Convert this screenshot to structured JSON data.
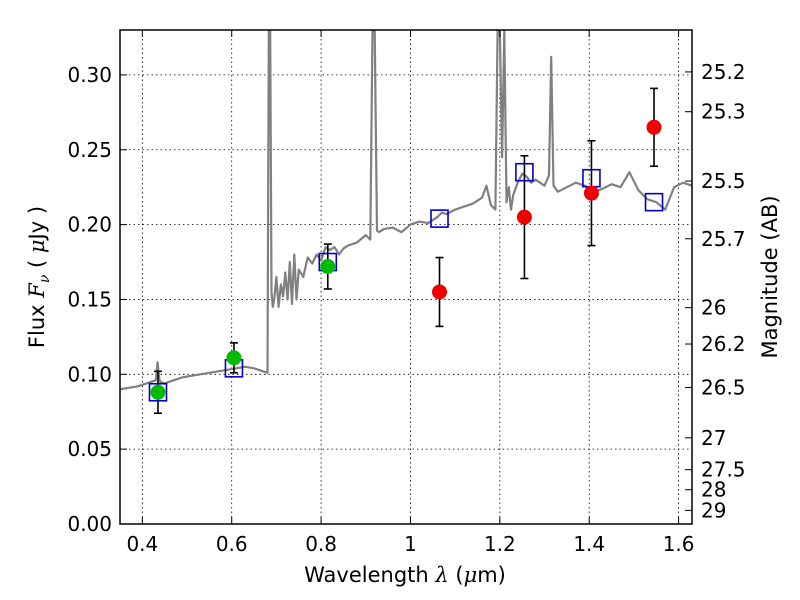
{
  "chart_data": {
    "type": "scatter",
    "xlabel": {
      "text_before": "Wavelength  ",
      "symbol": "λ",
      "unit_open": " (",
      "unit_symbol": "μ",
      "unit_close": "m)"
    },
    "ylabel": {
      "text_before": "Flux  ",
      "symbol": "F",
      "subscript": "ν",
      "unit_open": "  ( ",
      "unit_symbol": "μ",
      "unit_close": "Jy )"
    },
    "y2label": "Magnitude (AB)",
    "xlim": [
      0.35,
      1.63
    ],
    "ylim": [
      0.0,
      0.33
    ],
    "x_ticks": [
      0.4,
      0.6,
      0.8,
      1.0,
      1.2,
      1.4,
      1.6
    ],
    "x_tick_labels": [
      "0.4",
      "0.6",
      "0.8",
      "1",
      "1.2",
      "1.4",
      "1.6"
    ],
    "y_ticks": [
      0.0,
      0.05,
      0.1,
      0.15,
      0.2,
      0.25,
      0.3
    ],
    "y_tick_labels": [
      "0.00",
      "0.05",
      "0.10",
      "0.15",
      "0.20",
      "0.25",
      "0.30"
    ],
    "mag_ticks": [
      25.2,
      25.3,
      25.5,
      25.7,
      26,
      26.2,
      26.5,
      27,
      27.5,
      28,
      29
    ],
    "mag_tick_labels": [
      "25.2",
      "25.3",
      "25.5",
      "25.7",
      "26",
      "26.2",
      "26.5",
      "27",
      "27.5",
      "28",
      "29"
    ],
    "grid": true,
    "colors": {
      "model": "#808080",
      "model_points": "#0000cc",
      "detected": "#00bb00",
      "measured": "#ee0000",
      "errorbar": "#000000"
    },
    "model_spectrum": {
      "x": [
        0.35,
        0.37,
        0.39,
        0.41,
        0.42,
        0.43,
        0.434,
        0.438,
        0.44,
        0.45,
        0.47,
        0.49,
        0.51,
        0.53,
        0.55,
        0.57,
        0.59,
        0.61,
        0.63,
        0.65,
        0.67,
        0.68,
        0.683,
        0.686,
        0.689,
        0.692,
        0.695,
        0.7,
        0.705,
        0.71,
        0.715,
        0.72,
        0.725,
        0.73,
        0.735,
        0.74,
        0.745,
        0.75,
        0.76,
        0.77,
        0.78,
        0.79,
        0.8,
        0.81,
        0.82,
        0.83,
        0.84,
        0.85,
        0.86,
        0.88,
        0.9,
        0.91,
        0.915,
        0.92,
        0.925,
        0.93,
        0.94,
        0.96,
        0.98,
        1.0,
        1.02,
        1.04,
        1.06,
        1.07,
        1.08,
        1.1,
        1.12,
        1.14,
        1.16,
        1.17,
        1.18,
        1.19,
        1.195,
        1.2,
        1.205,
        1.21,
        1.215,
        1.22,
        1.225,
        1.23,
        1.24,
        1.25,
        1.26,
        1.27,
        1.28,
        1.3,
        1.31,
        1.315,
        1.32,
        1.33,
        1.35,
        1.37,
        1.39,
        1.41,
        1.43,
        1.45,
        1.47,
        1.49,
        1.51,
        1.53,
        1.55,
        1.57,
        1.59,
        1.61,
        1.63
      ],
      "y": [
        0.09,
        0.091,
        0.092,
        0.094,
        0.095,
        0.096,
        0.108,
        0.097,
        0.095,
        0.094,
        0.096,
        0.098,
        0.099,
        0.1,
        0.101,
        0.102,
        0.103,
        0.104,
        0.105,
        0.104,
        0.102,
        0.101,
        0.33,
        0.33,
        0.155,
        0.145,
        0.15,
        0.165,
        0.145,
        0.16,
        0.152,
        0.168,
        0.15,
        0.175,
        0.147,
        0.18,
        0.15,
        0.17,
        0.165,
        0.178,
        0.174,
        0.18,
        0.176,
        0.185,
        0.183,
        0.185,
        0.18,
        0.184,
        0.186,
        0.188,
        0.193,
        0.19,
        0.33,
        0.33,
        0.196,
        0.195,
        0.197,
        0.198,
        0.195,
        0.2,
        0.202,
        0.201,
        0.205,
        0.208,
        0.207,
        0.21,
        0.212,
        0.214,
        0.218,
        0.226,
        0.213,
        0.21,
        0.33,
        0.33,
        0.245,
        0.33,
        0.215,
        0.225,
        0.21,
        0.22,
        0.228,
        0.234,
        0.232,
        0.228,
        0.23,
        0.226,
        0.233,
        0.312,
        0.226,
        0.222,
        0.225,
        0.228,
        0.226,
        0.222,
        0.224,
        0.227,
        0.225,
        0.235,
        0.223,
        0.217,
        0.215,
        0.21,
        0.225,
        0.228,
        0.226
      ]
    },
    "model_points": {
      "x": [
        0.435,
        0.605,
        0.815,
        1.065,
        1.255,
        1.405,
        1.545
      ],
      "y": [
        0.088,
        0.104,
        0.175,
        0.204,
        0.235,
        0.231,
        0.215
      ]
    },
    "detected_points": {
      "x": [
        0.435,
        0.605,
        0.815
      ],
      "y": [
        0.088,
        0.111,
        0.172
      ],
      "yerr": [
        0.014,
        0.01,
        0.015
      ]
    },
    "measured_points": {
      "x": [
        1.065,
        1.255,
        1.405,
        1.545
      ],
      "y": [
        0.155,
        0.205,
        0.221,
        0.265
      ],
      "yerr": [
        0.023,
        0.041,
        0.035,
        0.026
      ]
    }
  }
}
